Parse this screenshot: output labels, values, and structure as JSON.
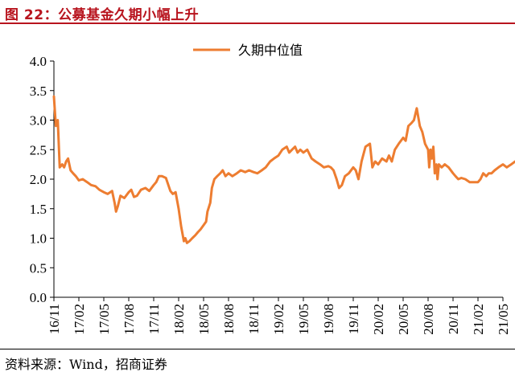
{
  "figure": {
    "title": "图 22：公募基金久期小幅上升",
    "source": "资料来源：Wind，招商证券",
    "accent_color": "#b8141e"
  },
  "chart_data": {
    "type": "line",
    "title": "",
    "xlabel": "",
    "ylabel": "",
    "ylim": [
      0,
      4
    ],
    "yticks": [
      "0.0",
      "0.5",
      "1.0",
      "1.5",
      "2.0",
      "2.5",
      "3.0",
      "3.5",
      "4.0"
    ],
    "xticks": [
      "16/11",
      "17/02",
      "17/05",
      "17/08",
      "17/11",
      "18/02",
      "18/05",
      "18/08",
      "18/11",
      "19/02",
      "19/05",
      "19/08",
      "19/11",
      "20/02",
      "20/05",
      "20/08",
      "20/11",
      "21/02",
      "21/05"
    ],
    "grid": false,
    "legend_position": "top-center",
    "series": [
      {
        "name": "久期中位值",
        "color": "#ed7d31",
        "points": [
          [
            "2016-11-01",
            3.4
          ],
          [
            "2016-11-08",
            2.9
          ],
          [
            "2016-11-15",
            3.0
          ],
          [
            "2016-11-22",
            2.2
          ],
          [
            "2016-12-01",
            2.25
          ],
          [
            "2016-12-08",
            2.2
          ],
          [
            "2016-12-15",
            2.3
          ],
          [
            "2016-12-22",
            2.35
          ],
          [
            "2017-01-01",
            2.15
          ],
          [
            "2017-01-10",
            2.1
          ],
          [
            "2017-01-20",
            2.05
          ],
          [
            "2017-02-01",
            1.98
          ],
          [
            "2017-02-15",
            2.0
          ],
          [
            "2017-03-01",
            1.95
          ],
          [
            "2017-03-15",
            1.9
          ],
          [
            "2017-04-01",
            1.88
          ],
          [
            "2017-04-15",
            1.82
          ],
          [
            "2017-05-01",
            1.78
          ],
          [
            "2017-05-15",
            1.75
          ],
          [
            "2017-06-01",
            1.8
          ],
          [
            "2017-06-10",
            1.6
          ],
          [
            "2017-06-15",
            1.45
          ],
          [
            "2017-06-22",
            1.55
          ],
          [
            "2017-07-01",
            1.72
          ],
          [
            "2017-07-15",
            1.68
          ],
          [
            "2017-08-01",
            1.78
          ],
          [
            "2017-08-10",
            1.82
          ],
          [
            "2017-08-20",
            1.7
          ],
          [
            "2017-09-01",
            1.72
          ],
          [
            "2017-09-15",
            1.82
          ],
          [
            "2017-10-01",
            1.85
          ],
          [
            "2017-10-15",
            1.8
          ],
          [
            "2017-11-01",
            1.9
          ],
          [
            "2017-11-10",
            1.95
          ],
          [
            "2017-11-20",
            2.05
          ],
          [
            "2017-12-01",
            2.05
          ],
          [
            "2017-12-15",
            2.02
          ],
          [
            "2018-01-01",
            1.8
          ],
          [
            "2018-01-10",
            1.75
          ],
          [
            "2018-01-20",
            1.78
          ],
          [
            "2018-02-01",
            1.5
          ],
          [
            "2018-02-10",
            1.2
          ],
          [
            "2018-02-20",
            0.95
          ],
          [
            "2018-02-25",
            1.0
          ],
          [
            "2018-03-01",
            0.92
          ],
          [
            "2018-03-10",
            0.95
          ],
          [
            "2018-03-20",
            1.0
          ],
          [
            "2018-04-01",
            1.05
          ],
          [
            "2018-04-10",
            1.1
          ],
          [
            "2018-04-20",
            1.15
          ],
          [
            "2018-05-01",
            1.22
          ],
          [
            "2018-05-10",
            1.28
          ],
          [
            "2018-05-15",
            1.45
          ],
          [
            "2018-05-25",
            1.6
          ],
          [
            "2018-06-01",
            1.85
          ],
          [
            "2018-06-10",
            2.0
          ],
          [
            "2018-06-20",
            2.05
          ],
          [
            "2018-07-01",
            2.1
          ],
          [
            "2018-07-10",
            2.15
          ],
          [
            "2018-07-20",
            2.05
          ],
          [
            "2018-08-01",
            2.1
          ],
          [
            "2018-08-15",
            2.05
          ],
          [
            "2018-09-01",
            2.1
          ],
          [
            "2018-09-15",
            2.15
          ],
          [
            "2018-10-01",
            2.12
          ],
          [
            "2018-10-15",
            2.15
          ],
          [
            "2018-11-01",
            2.12
          ],
          [
            "2018-11-15",
            2.1
          ],
          [
            "2018-12-01",
            2.15
          ],
          [
            "2018-12-15",
            2.2
          ],
          [
            "2019-01-01",
            2.3
          ],
          [
            "2019-01-15",
            2.35
          ],
          [
            "2019-02-01",
            2.4
          ],
          [
            "2019-02-15",
            2.5
          ],
          [
            "2019-03-01",
            2.55
          ],
          [
            "2019-03-10",
            2.45
          ],
          [
            "2019-03-20",
            2.5
          ],
          [
            "2019-04-01",
            2.55
          ],
          [
            "2019-04-10",
            2.45
          ],
          [
            "2019-04-20",
            2.5
          ],
          [
            "2019-05-01",
            2.45
          ],
          [
            "2019-05-15",
            2.5
          ],
          [
            "2019-06-01",
            2.35
          ],
          [
            "2019-06-15",
            2.3
          ],
          [
            "2019-07-01",
            2.25
          ],
          [
            "2019-07-15",
            2.2
          ],
          [
            "2019-08-01",
            2.22
          ],
          [
            "2019-08-10",
            2.2
          ],
          [
            "2019-08-20",
            2.15
          ],
          [
            "2019-09-01",
            2.0
          ],
          [
            "2019-09-10",
            1.85
          ],
          [
            "2019-09-20",
            1.9
          ],
          [
            "2019-10-01",
            2.05
          ],
          [
            "2019-10-15",
            2.1
          ],
          [
            "2019-11-01",
            2.2
          ],
          [
            "2019-11-10",
            2.15
          ],
          [
            "2019-11-20",
            2.0
          ],
          [
            "2019-12-01",
            2.3
          ],
          [
            "2019-12-15",
            2.55
          ],
          [
            "2020-01-01",
            2.6
          ],
          [
            "2020-01-10",
            2.2
          ],
          [
            "2020-01-20",
            2.3
          ],
          [
            "2020-02-01",
            2.25
          ],
          [
            "2020-02-15",
            2.35
          ],
          [
            "2020-03-01",
            2.3
          ],
          [
            "2020-03-10",
            2.4
          ],
          [
            "2020-03-20",
            2.3
          ],
          [
            "2020-04-01",
            2.5
          ],
          [
            "2020-04-15",
            2.6
          ],
          [
            "2020-05-01",
            2.7
          ],
          [
            "2020-05-10",
            2.65
          ],
          [
            "2020-05-20",
            2.9
          ],
          [
            "2020-06-01",
            2.95
          ],
          [
            "2020-06-10",
            3.0
          ],
          [
            "2020-06-20",
            3.2
          ],
          [
            "2020-07-01",
            2.9
          ],
          [
            "2020-07-10",
            2.8
          ],
          [
            "2020-07-20",
            2.6
          ],
          [
            "2020-08-01",
            2.5
          ],
          [
            "2020-08-05",
            2.2
          ],
          [
            "2020-08-10",
            2.5
          ],
          [
            "2020-08-15",
            2.35
          ],
          [
            "2020-08-20",
            2.55
          ],
          [
            "2020-08-25",
            2.1
          ],
          [
            "2020-09-01",
            2.25
          ],
          [
            "2020-09-05",
            2.0
          ],
          [
            "2020-09-10",
            2.25
          ],
          [
            "2020-09-20",
            2.2
          ],
          [
            "2020-10-01",
            2.25
          ],
          [
            "2020-10-15",
            2.2
          ],
          [
            "2020-11-01",
            2.1
          ],
          [
            "2020-11-10",
            2.05
          ],
          [
            "2020-11-20",
            2.0
          ],
          [
            "2020-12-01",
            2.02
          ],
          [
            "2020-12-15",
            2.0
          ],
          [
            "2021-01-01",
            1.95
          ],
          [
            "2021-01-15",
            1.95
          ],
          [
            "2021-02-01",
            1.95
          ],
          [
            "2021-02-10",
            2.0
          ],
          [
            "2021-02-20",
            2.1
          ],
          [
            "2021-03-01",
            2.05
          ],
          [
            "2021-03-10",
            2.1
          ],
          [
            "2021-03-20",
            2.1
          ],
          [
            "2021-04-01",
            2.15
          ],
          [
            "2021-04-15",
            2.2
          ],
          [
            "2021-05-01",
            2.25
          ],
          [
            "2021-05-15",
            2.2
          ],
          [
            "2021-06-01",
            2.25
          ],
          [
            "2021-06-15",
            2.3
          ]
        ]
      }
    ]
  }
}
